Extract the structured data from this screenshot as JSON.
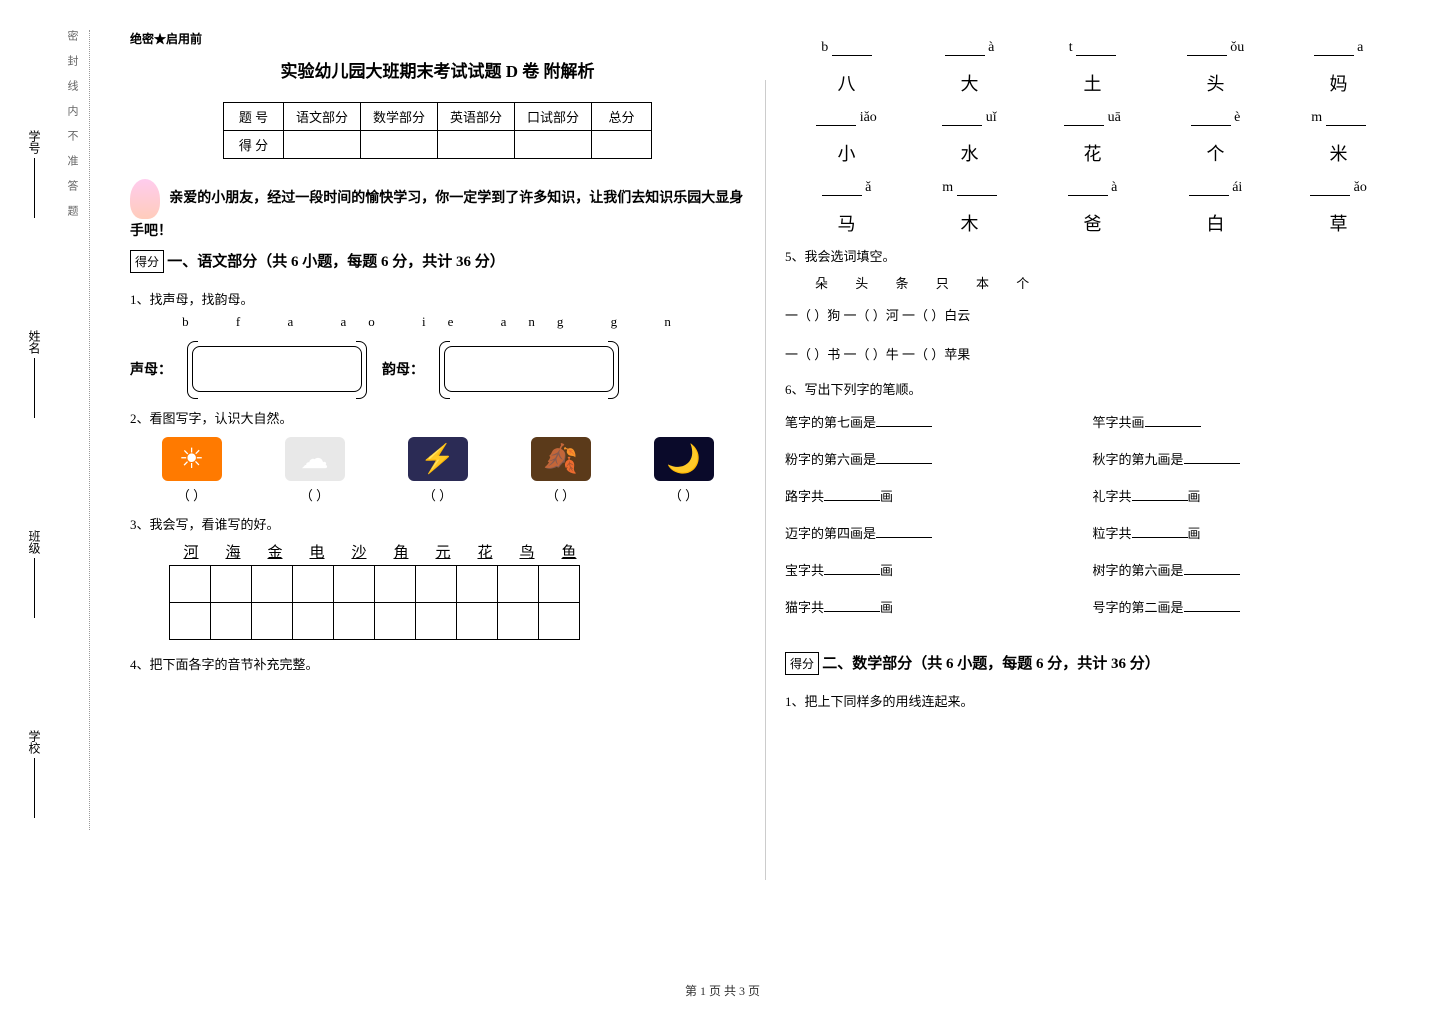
{
  "binding": {
    "dotted_text": "密封线内不准答题",
    "fields": [
      "学校",
      "班级",
      "姓名",
      "学号"
    ]
  },
  "header": {
    "secret": "绝密★启用前",
    "title": "实验幼儿园大班期末考试试题 D 卷  附解析"
  },
  "score_table": {
    "row1": [
      "题  号",
      "语文部分",
      "数学部分",
      "英语部分",
      "口试部分",
      "总分"
    ],
    "row2_label": "得  分"
  },
  "intro": "亲爱的小朋友，经过一段时间的愉快学习，你一定学到了许多知识，让我们去知识乐园大显身手吧！",
  "score_box": "得分",
  "section1": {
    "title": "一、语文部分（共 6 小题，每题 6 分，共计 36 分）",
    "q1": {
      "label": "1、找声母，找韵母。",
      "letters": "b   f   a   ao   ie   ang   g   n",
      "shengmu": "声母：",
      "yunmu": "韵母："
    },
    "q2": {
      "label": "2、看图写字，认识大自然。",
      "images": [
        {
          "bg": "#ff7a00",
          "glyph": "☀"
        },
        {
          "bg": "#e8e8e8",
          "glyph": "☁"
        },
        {
          "bg": "#2b2b55",
          "glyph": "⚡"
        },
        {
          "bg": "#5b3a1a",
          "glyph": "🍂"
        },
        {
          "bg": "#0a0a2a",
          "glyph": "🌙"
        }
      ],
      "paren": "（        ）"
    },
    "q3": {
      "label": "3、我会写，看谁写的好。",
      "chars": [
        "河",
        "海",
        "金",
        "电",
        "沙",
        "角",
        "元",
        "花",
        "鸟",
        "鱼"
      ]
    },
    "q4": {
      "label": "4、把下面各字的音节补充完整。",
      "items": [
        {
          "py_prefix": "b",
          "py_suffix": "",
          "blank_after": true,
          "hz": "八"
        },
        {
          "py_prefix": "",
          "py_suffix": "à",
          "blank_before": true,
          "hz": "大"
        },
        {
          "py_prefix": "t",
          "py_suffix": "",
          "blank_after": true,
          "hz": "土"
        },
        {
          "py_prefix": "",
          "py_suffix": "ǒu",
          "blank_before": true,
          "hz": "头"
        },
        {
          "py_prefix": "",
          "py_suffix": "a",
          "blank_before": true,
          "hz": "妈"
        },
        {
          "py_prefix": "",
          "py_suffix": "iǎo",
          "blank_before": true,
          "hz": "小"
        },
        {
          "py_prefix": "",
          "py_suffix": "uǐ",
          "blank_before": true,
          "hz": "水"
        },
        {
          "py_prefix": "",
          "py_suffix": "uā",
          "blank_before": true,
          "hz": "花"
        },
        {
          "py_prefix": "",
          "py_suffix": "è",
          "blank_before": true,
          "hz": "个"
        },
        {
          "py_prefix": "m",
          "py_suffix": "",
          "blank_after": true,
          "hz": "米"
        },
        {
          "py_prefix": "",
          "py_suffix": "ǎ",
          "blank_before": true,
          "hz": "马"
        },
        {
          "py_prefix": "m",
          "py_suffix": "",
          "blank_after": true,
          "hz": "木"
        },
        {
          "py_prefix": "",
          "py_suffix": "à",
          "blank_before": true,
          "hz": "爸"
        },
        {
          "py_prefix": "",
          "py_suffix": "ái",
          "blank_before": true,
          "hz": "白"
        },
        {
          "py_prefix": "",
          "py_suffix": "ǎo",
          "blank_before": true,
          "hz": "草"
        }
      ]
    },
    "q5": {
      "label": "5、我会选词填空。",
      "bank": "朵  头  条  只  本  个",
      "lines": [
        "一（    ）狗    一（    ）河    一（    ）白云",
        "一（    ）书    一（    ）牛    一（    ）苹果"
      ]
    },
    "q6": {
      "label": "6、写出下列字的笔顺。",
      "items": [
        "笔字的第七画是________",
        "竿字共画________",
        "粉字的第六画是________",
        "秋字的第九画是________",
        "路字共________画",
        "礼字共________画",
        "迈字的第四画是________",
        "粒字共________画",
        "宝字共________画",
        "树字的第六画是________",
        "猫字共________画",
        "号字的第二画是________"
      ]
    }
  },
  "section2": {
    "title": "二、数学部分（共 6 小题，每题 6 分，共计 36 分）",
    "q1": "1、把上下同样多的用线连起来。"
  },
  "footer": "第 1 页  共 3 页"
}
